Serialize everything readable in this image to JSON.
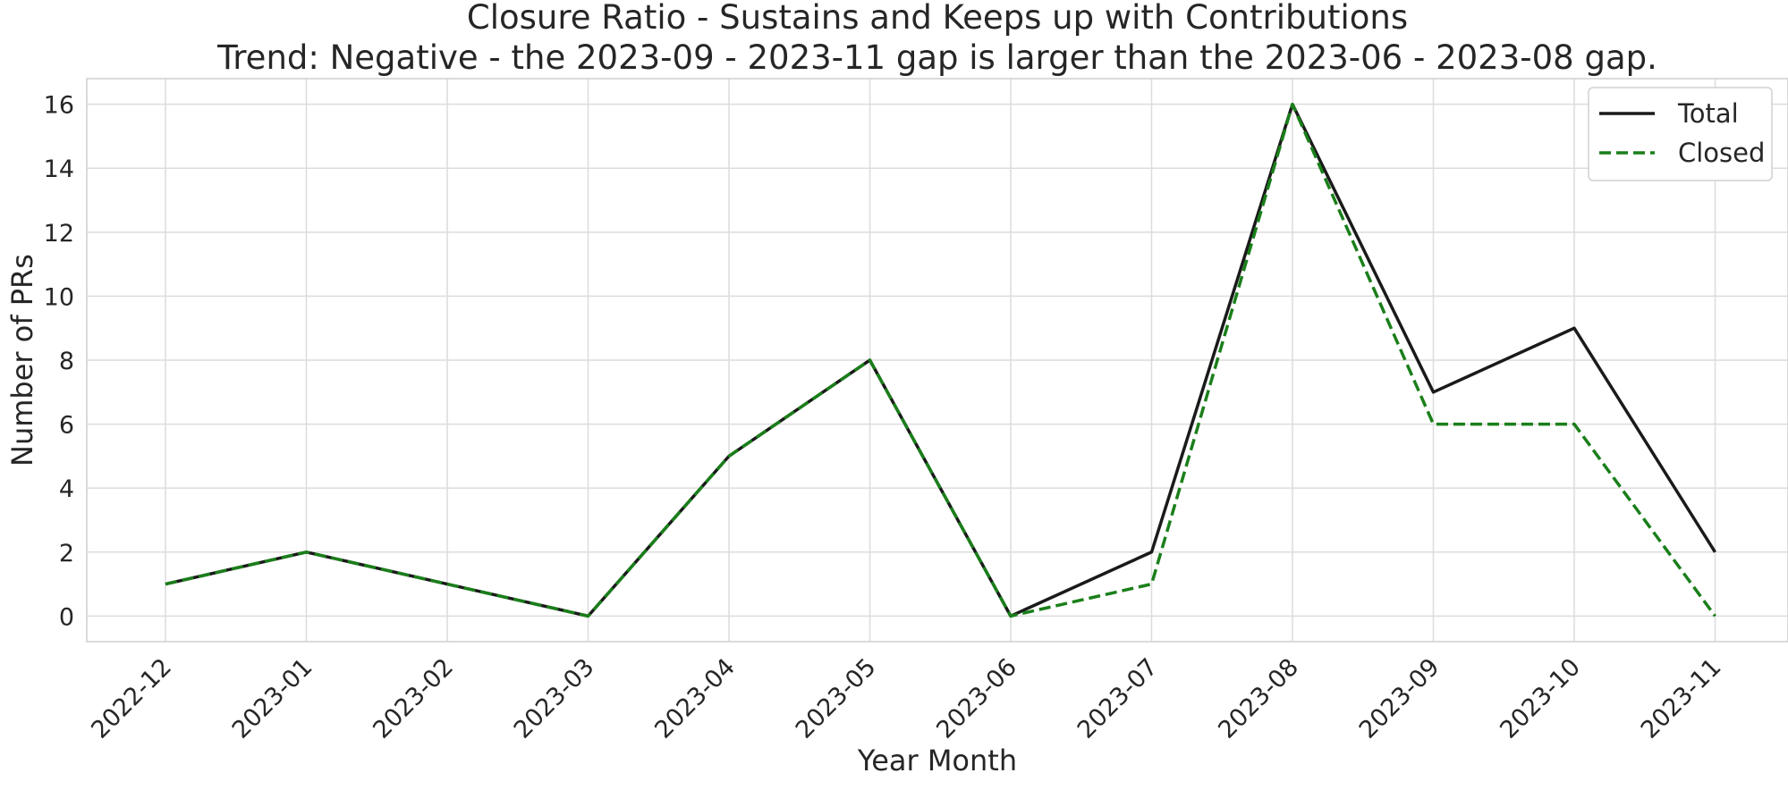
{
  "chart_data": {
    "type": "line",
    "title_lines": [
      "Closure Ratio - Sustains and Keeps up with Contributions",
      "Trend: Negative - the 2023-09 - 2023-11 gap is larger than the 2023-06 - 2023-08 gap."
    ],
    "xlabel": "Year Month",
    "ylabel": "Number of PRs",
    "categories": [
      "2022-12",
      "2023-01",
      "2023-02",
      "2023-03",
      "2023-04",
      "2023-05",
      "2023-06",
      "2023-07",
      "2023-08",
      "2023-09",
      "2023-10",
      "2023-11"
    ],
    "series": [
      {
        "name": "Total",
        "values": [
          1,
          2,
          1,
          0,
          5,
          8,
          0,
          2,
          16,
          7,
          9,
          2
        ],
        "color": "#1a1a1a",
        "style": "solid"
      },
      {
        "name": "Closed",
        "values": [
          1,
          2,
          1,
          0,
          5,
          8,
          0,
          1,
          16,
          6,
          6,
          0
        ],
        "color": "#1a7f1a",
        "style": "dashed"
      }
    ],
    "ylim": [
      -0.8,
      16.8
    ],
    "yticks": [
      0,
      2,
      4,
      6,
      8,
      10,
      12,
      14,
      16
    ],
    "grid": true,
    "legend_position": "top-right"
  }
}
